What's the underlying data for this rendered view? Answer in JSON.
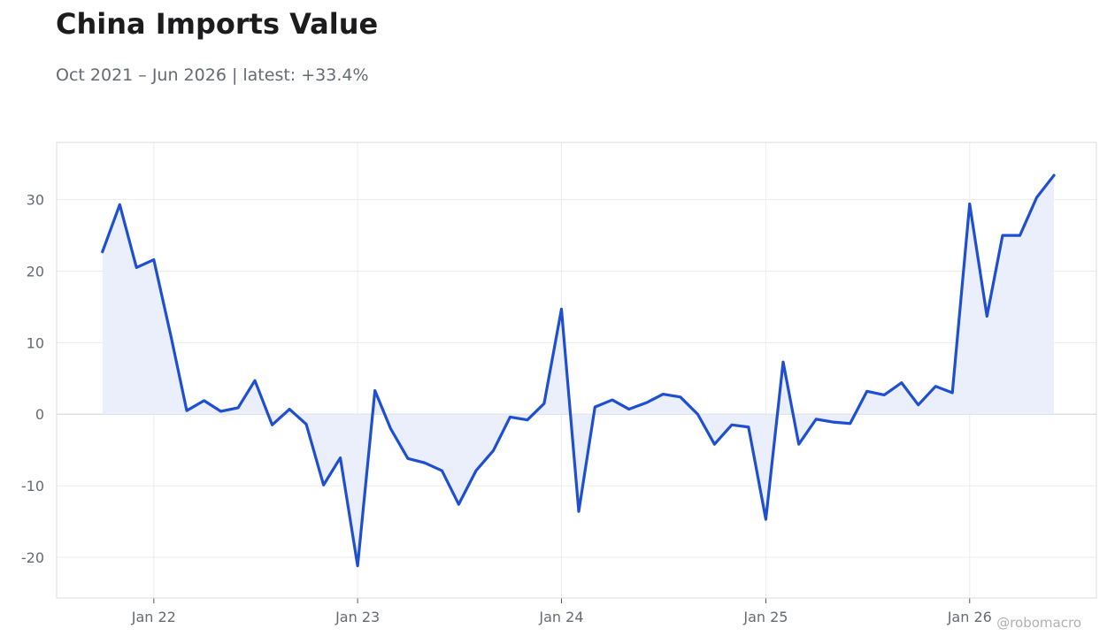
{
  "header": {
    "title": "China Imports Value",
    "subtitle": "Oct 2021 – Jun 2026 | latest: +33.4%"
  },
  "watermark": "@robomacro",
  "colors": {
    "line": "#1f4fd1",
    "fill": "#e9eefb",
    "grid": "#ececec",
    "frame": "#dcdcdc",
    "zero_line": "#d8d8d8",
    "tick_text": "#666a73",
    "title": "#1c1c1e"
  },
  "chart_data": {
    "type": "area",
    "title": "China Imports Value",
    "subtitle": "Oct 2021 – Jun 2026 | latest: +33.4%",
    "xlabel": "",
    "ylabel": "",
    "grid": true,
    "legend": "none",
    "ylim": [
      -25.7,
      38
    ],
    "xlim": [
      "2021-07-11",
      "2026-08-16"
    ],
    "yticks": [
      30,
      20,
      10,
      0,
      -10,
      -20
    ],
    "xticks": [
      {
        "date": "2022-01-01",
        "label": "Jan 22"
      },
      {
        "date": "2023-01-01",
        "label": "Jan 23"
      },
      {
        "date": "2024-01-01",
        "label": "Jan 24"
      },
      {
        "date": "2025-01-01",
        "label": "Jan 25"
      },
      {
        "date": "2026-01-01",
        "label": "Jan 26"
      }
    ],
    "x": [
      "2021-10-01",
      "2021-11-01",
      "2021-12-01",
      "2022-01-01",
      "2022-02-01",
      "2022-03-01",
      "2022-04-01",
      "2022-05-01",
      "2022-06-01",
      "2022-07-01",
      "2022-08-01",
      "2022-09-01",
      "2022-10-01",
      "2022-11-01",
      "2022-12-01",
      "2023-01-01",
      "2023-02-01",
      "2023-03-01",
      "2023-04-01",
      "2023-05-01",
      "2023-06-01",
      "2023-07-01",
      "2023-08-01",
      "2023-09-01",
      "2023-10-01",
      "2023-11-01",
      "2023-12-01",
      "2024-01-01",
      "2024-02-01",
      "2024-03-01",
      "2024-04-01",
      "2024-05-01",
      "2024-06-01",
      "2024-07-01",
      "2024-08-01",
      "2024-09-01",
      "2024-10-01",
      "2024-11-01",
      "2024-12-01",
      "2025-01-01",
      "2025-02-01",
      "2025-03-01",
      "2025-04-01",
      "2025-05-01",
      "2025-06-01",
      "2025-07-01",
      "2025-08-01",
      "2025-09-01",
      "2025-10-01",
      "2025-11-01",
      "2025-12-01",
      "2026-01-01",
      "2026-02-01",
      "2026-03-01",
      "2026-04-01",
      "2026-05-01",
      "2026-06-01"
    ],
    "series": [
      {
        "values": [
          22.7,
          29.3,
          20.5,
          21.6,
          10.8,
          0.5,
          1.9,
          0.4,
          0.9,
          4.7,
          -1.5,
          0.7,
          -1.4,
          -9.9,
          -6.1,
          -21.2,
          3.3,
          -2.0,
          -6.2,
          -6.8,
          -7.9,
          -12.6,
          -7.9,
          -5.1,
          -0.4,
          -0.8,
          1.5,
          14.7,
          -13.6,
          1.0,
          2.0,
          0.7,
          1.6,
          2.8,
          2.4,
          0.0,
          -4.2,
          -1.5,
          -1.8,
          -14.7,
          7.3,
          -4.2,
          -0.7,
          -1.1,
          -1.3,
          3.2,
          2.7,
          4.4,
          1.3,
          3.9,
          3.0,
          29.4,
          13.7,
          25.0,
          25.0,
          30.3,
          33.4
        ]
      }
    ]
  }
}
